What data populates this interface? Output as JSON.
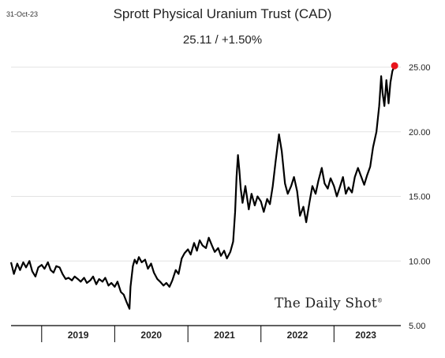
{
  "header": {
    "date_stamp": "31-Oct-23",
    "title": "Sprott Physical Uranium Trust (CAD)",
    "subtitle": "25.11  /  +1.50%"
  },
  "watermark": {
    "text": "The Daily Shot",
    "mark": "®"
  },
  "colors": {
    "line": "#000000",
    "last_point": "#e8141c",
    "axis": "#000000",
    "grid": "#e3e3e3"
  },
  "chart_data": {
    "type": "line",
    "title": "Sprott Physical Uranium Trust (CAD)",
    "subtitle": "25.11  /  +1.50%",
    "xlabel": "",
    "ylabel": "",
    "x_tick_labels": [
      "2019",
      "2020",
      "2021",
      "2022",
      "2023"
    ],
    "y_tick_labels": [
      "5.00",
      "10.00",
      "15.00",
      "20.00",
      "25.00"
    ],
    "xlim": [
      "2018-08-01",
      "2023-12-01"
    ],
    "ylim": [
      5,
      25.5
    ],
    "y_axis_side": "right",
    "grid": "horizontal",
    "last_point_marker": true,
    "series": [
      {
        "x": [
          "2018-08-01",
          "2018-08-15",
          "2018-09-01",
          "2018-09-15",
          "2018-10-01",
          "2018-10-15",
          "2018-11-01",
          "2018-11-15",
          "2018-12-01",
          "2018-12-15",
          "2019-01-01",
          "2019-01-15",
          "2019-02-01",
          "2019-02-15",
          "2019-03-01",
          "2019-03-15",
          "2019-04-01",
          "2019-04-15",
          "2019-05-01",
          "2019-05-15",
          "2019-06-01",
          "2019-06-15",
          "2019-07-01",
          "2019-07-15",
          "2019-08-01",
          "2019-08-15",
          "2019-09-01",
          "2019-09-15",
          "2019-10-01",
          "2019-10-15",
          "2019-11-01",
          "2019-11-15",
          "2019-12-01",
          "2019-12-15",
          "2020-01-01",
          "2020-01-15",
          "2020-02-01",
          "2020-02-15",
          "2020-03-01",
          "2020-03-15",
          "2020-03-20",
          "2020-04-01",
          "2020-04-10",
          "2020-04-20",
          "2020-05-01",
          "2020-05-15",
          "2020-06-01",
          "2020-06-15",
          "2020-07-01",
          "2020-07-15",
          "2020-08-01",
          "2020-08-15",
          "2020-09-01",
          "2020-09-15",
          "2020-10-01",
          "2020-10-15",
          "2020-11-01",
          "2020-11-15",
          "2020-12-01",
          "2020-12-15",
          "2021-01-01",
          "2021-01-15",
          "2021-02-01",
          "2021-02-15",
          "2021-03-01",
          "2021-03-15",
          "2021-04-01",
          "2021-04-15",
          "2021-05-01",
          "2021-05-15",
          "2021-06-01",
          "2021-06-15",
          "2021-07-01",
          "2021-07-15",
          "2021-08-01",
          "2021-08-15",
          "2021-08-25",
          "2021-09-01",
          "2021-09-08",
          "2021-09-15",
          "2021-09-22",
          "2021-10-01",
          "2021-10-15",
          "2021-11-01",
          "2021-11-15",
          "2021-12-01",
          "2021-12-15",
          "2022-01-01",
          "2022-01-15",
          "2022-02-01",
          "2022-02-15",
          "2022-03-01",
          "2022-03-15",
          "2022-04-01",
          "2022-04-15",
          "2022-05-01",
          "2022-05-15",
          "2022-06-01",
          "2022-06-15",
          "2022-07-01",
          "2022-07-15",
          "2022-08-01",
          "2022-08-15",
          "2022-09-01",
          "2022-09-15",
          "2022-10-01",
          "2022-10-15",
          "2022-11-01",
          "2022-11-15",
          "2022-12-01",
          "2022-12-15",
          "2023-01-01",
          "2023-01-15",
          "2023-02-01",
          "2023-02-15",
          "2023-03-01",
          "2023-03-15",
          "2023-04-01",
          "2023-04-15",
          "2023-05-01",
          "2023-05-15",
          "2023-06-01",
          "2023-06-15",
          "2023-07-01",
          "2023-07-15",
          "2023-08-01",
          "2023-08-15",
          "2023-08-25",
          "2023-09-01",
          "2023-09-10",
          "2023-09-20",
          "2023-10-01",
          "2023-10-10",
          "2023-10-20",
          "2023-10-31"
        ],
        "y": [
          9.9,
          9.0,
          9.8,
          9.3,
          9.9,
          9.5,
          10.0,
          9.2,
          8.8,
          9.5,
          9.7,
          9.4,
          9.9,
          9.3,
          9.1,
          9.6,
          9.5,
          9.0,
          8.6,
          8.7,
          8.5,
          8.8,
          8.6,
          8.4,
          8.7,
          8.3,
          8.5,
          8.8,
          8.2,
          8.6,
          8.4,
          8.7,
          8.1,
          8.3,
          8.0,
          8.4,
          7.6,
          7.4,
          6.8,
          6.3,
          8.0,
          9.6,
          10.1,
          9.8,
          10.3,
          9.9,
          10.1,
          9.4,
          9.8,
          9.1,
          8.6,
          8.4,
          8.1,
          8.3,
          8.0,
          8.5,
          9.3,
          9.0,
          10.2,
          10.6,
          10.9,
          10.5,
          11.4,
          10.8,
          11.6,
          11.2,
          11.0,
          11.8,
          11.2,
          10.7,
          11.0,
          10.4,
          10.8,
          10.2,
          10.7,
          11.5,
          13.8,
          16.5,
          18.2,
          17.0,
          15.6,
          14.5,
          15.8,
          14.0,
          15.2,
          14.3,
          15.0,
          14.6,
          13.8,
          14.8,
          14.4,
          15.8,
          17.7,
          19.8,
          18.5,
          16.0,
          15.2,
          15.8,
          16.5,
          15.4,
          13.5,
          14.2,
          13.0,
          14.6,
          15.8,
          15.2,
          16.2,
          17.2,
          16.0,
          15.6,
          16.4,
          15.8,
          15.0,
          15.8,
          16.5,
          15.2,
          15.7,
          15.3,
          16.5,
          17.2,
          16.6,
          15.9,
          16.6,
          17.3,
          18.8,
          20.0,
          22.0,
          24.3,
          23.0,
          22.0,
          24.0,
          22.2,
          23.8,
          24.7,
          25.11
        ]
      }
    ],
    "last_value": 25.11,
    "last_change": "+1.50%"
  }
}
